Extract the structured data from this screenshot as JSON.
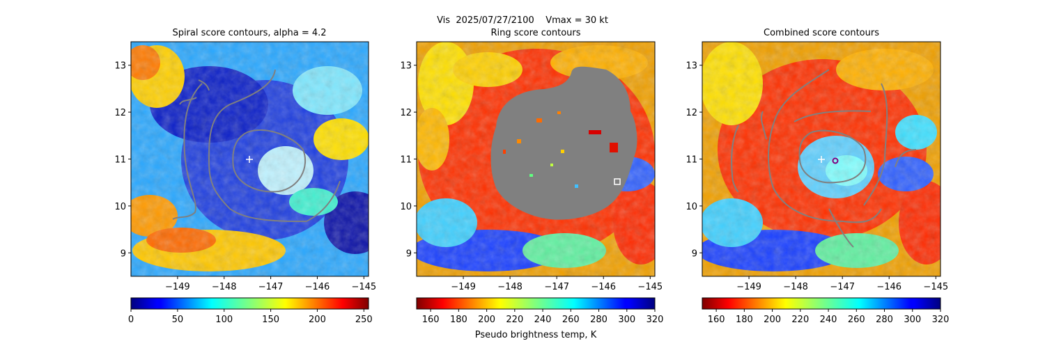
{
  "figure": {
    "suptitle": "Vis  2025/07/27/2100    Vmax = 30 kt",
    "colorbar_label": "Pseudo brightness temp, K"
  },
  "chart_data": [
    {
      "type": "heatmap",
      "title": "Spiral score contours, alpha =  4.2",
      "x_ticks": [
        -149,
        -148,
        -147,
        -146,
        -145
      ],
      "y_ticks": [
        9,
        10,
        11,
        12,
        13
      ],
      "xlim": [
        -150,
        -144.9
      ],
      "ylim": [
        8.5,
        13.5
      ],
      "colormap": "jet",
      "colorbar": {
        "range": [
          0,
          255
        ],
        "ticks": [
          0,
          50,
          100,
          150,
          200,
          250
        ],
        "reversed": false
      },
      "center_marker": {
        "symbol": "+",
        "lon": -147.4,
        "lat": 11.0,
        "color": "#ffffff"
      },
      "contour_color": "#808080"
    },
    {
      "type": "heatmap",
      "title": "Ring score contours",
      "x_ticks": [
        -149,
        -148,
        -147,
        -146,
        -145
      ],
      "y_ticks": [
        9,
        10,
        11,
        12,
        13
      ],
      "xlim": [
        -150,
        -144.9
      ],
      "ylim": [
        8.5,
        13.5
      ],
      "colormap": "jet_r",
      "colorbar": {
        "range": [
          150,
          320
        ],
        "ticks": [
          160,
          180,
          200,
          220,
          240,
          260,
          280,
          300,
          320
        ],
        "reversed": true
      },
      "square_marker": {
        "symbol": "square",
        "lon": -145.6,
        "lat": 10.52,
        "color": "#ffffff"
      },
      "mask_color": "#808080"
    },
    {
      "type": "heatmap",
      "title": "Combined score contours",
      "x_ticks": [
        -149,
        -148,
        -147,
        -146,
        -145
      ],
      "y_ticks": [
        9,
        10,
        11,
        12,
        13
      ],
      "xlim": [
        -150,
        -144.9
      ],
      "ylim": [
        8.5,
        13.5
      ],
      "colormap": "jet_r",
      "colorbar": {
        "range": [
          150,
          320
        ],
        "ticks": [
          160,
          180,
          200,
          220,
          240,
          260,
          280,
          300,
          320
        ],
        "reversed": true
      },
      "center_marker": {
        "symbol": "+",
        "lon": -147.3,
        "lat": 11.0,
        "color": "#ffffff"
      },
      "circle_marker": {
        "symbol": "o",
        "lon": -147.0,
        "lat": 10.98,
        "color": "#800080"
      },
      "contour_color": "#808080"
    }
  ]
}
